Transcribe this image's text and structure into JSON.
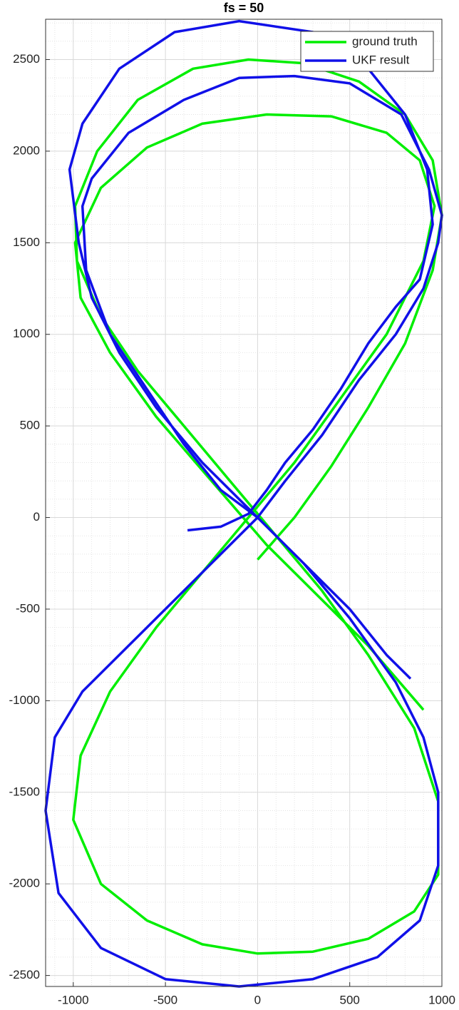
{
  "chart_data": {
    "type": "line",
    "title": "fs = 50",
    "xlim": [
      -1150,
      1000
    ],
    "ylim": [
      -2560,
      2720
    ],
    "xticks": [
      -1000,
      -500,
      0,
      500,
      1000
    ],
    "yticks": [
      -2500,
      -2000,
      -1500,
      -1000,
      -500,
      0,
      500,
      1000,
      1500,
      2000,
      2500
    ],
    "grid": true,
    "minor_grid": true,
    "legend": "upper right",
    "series": [
      {
        "name": "ground truth",
        "color": "#00ee00",
        "x": [
          0,
          200,
          400,
          600,
          800,
          950,
          1000,
          950,
          800,
          550,
          250,
          -50,
          -350,
          -650,
          -870,
          -990,
          -980,
          -850,
          -650,
          -400,
          -150,
          100,
          350,
          600,
          850,
          980,
          980,
          850,
          600,
          300,
          0,
          -300,
          -600,
          -850,
          -1000,
          -960,
          -800,
          -550,
          -300,
          -50,
          200,
          450,
          700,
          900,
          960,
          880,
          700,
          400,
          50,
          -300,
          -600,
          -850,
          -990,
          -960,
          -800,
          -550,
          -250,
          50,
          350,
          600,
          900
        ],
        "values": [
          -230,
          0,
          280,
          600,
          950,
          1350,
          1650,
          1950,
          2200,
          2380,
          2480,
          2500,
          2450,
          2280,
          2000,
          1700,
          1400,
          1100,
          800,
          500,
          200,
          -100,
          -400,
          -750,
          -1150,
          -1550,
          -1950,
          -2150,
          -2300,
          -2370,
          -2380,
          -2330,
          -2200,
          -2000,
          -1650,
          -1300,
          -950,
          -600,
          -300,
          0,
          300,
          650,
          1000,
          1400,
          1700,
          1950,
          2100,
          2190,
          2200,
          2150,
          2020,
          1800,
          1500,
          1200,
          900,
          550,
          200,
          -150,
          -450,
          -700,
          -1050
        ]
      },
      {
        "name": "UKF result",
        "color": "#1010e8",
        "x": [
          -380,
          -200,
          -50,
          50,
          150,
          300,
          450,
          600,
          750,
          880,
          950,
          920,
          800,
          600,
          300,
          -100,
          -450,
          -750,
          -950,
          -1020,
          -970,
          -900,
          -750,
          -550,
          -300,
          -50,
          250,
          500,
          750,
          900,
          980,
          980,
          880,
          650,
          300,
          -100,
          -500,
          -850,
          -1080,
          -1150,
          -1100,
          -950,
          -700,
          -450,
          -200,
          0,
          150,
          350,
          550,
          750,
          900,
          980,
          1000,
          930,
          780,
          500,
          200,
          -100,
          -400,
          -700,
          -900,
          -950,
          -930,
          -800,
          -600,
          -400,
          -200,
          0,
          250,
          500,
          700,
          830
        ],
        "values": [
          -70,
          -50,
          20,
          150,
          300,
          480,
          700,
          950,
          1150,
          1300,
          1600,
          1900,
          2200,
          2450,
          2650,
          2710,
          2650,
          2450,
          2150,
          1900,
          1500,
          1200,
          900,
          600,
          300,
          50,
          -250,
          -550,
          -900,
          -1200,
          -1500,
          -1900,
          -2200,
          -2400,
          -2520,
          -2560,
          -2520,
          -2350,
          -2050,
          -1600,
          -1200,
          -950,
          -700,
          -450,
          -200,
          0,
          200,
          450,
          750,
          1000,
          1250,
          1500,
          1650,
          1900,
          2200,
          2370,
          2410,
          2400,
          2280,
          2100,
          1850,
          1700,
          1350,
          1000,
          700,
          400,
          150,
          0,
          -250,
          -500,
          -750,
          -880
        ]
      }
    ]
  }
}
